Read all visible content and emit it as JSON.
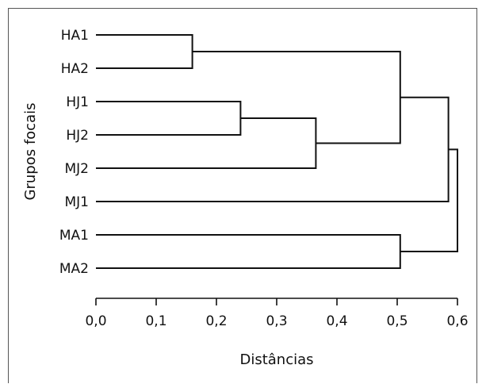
{
  "chart_data": {
    "type": "dendrogram",
    "xlabel": "Distâncias",
    "ylabel": "Grupos focais",
    "xlim": [
      0.0,
      0.6
    ],
    "xticks": [
      "0,0",
      "0,1",
      "0,2",
      "0,3",
      "0,4",
      "0,5",
      "0,6"
    ],
    "xtick_values": [
      0.0,
      0.1,
      0.2,
      0.3,
      0.4,
      0.5,
      0.6
    ],
    "leaves": [
      "HA1",
      "HA2",
      "HJ1",
      "HJ2",
      "MJ2",
      "MJ1",
      "MA1",
      "MA2"
    ],
    "merges": [
      {
        "id": "c1",
        "left": "HA1",
        "right": "HA2",
        "distance": 0.16
      },
      {
        "id": "c2",
        "left": "HJ1",
        "right": "HJ2",
        "distance": 0.24
      },
      {
        "id": "c3",
        "left": "c2",
        "right": "MJ2",
        "distance": 0.365
      },
      {
        "id": "c4",
        "left": "c1",
        "right": "c3",
        "distance": 0.505
      },
      {
        "id": "c5",
        "left": "MA1",
        "right": "MA2",
        "distance": 0.505
      },
      {
        "id": "c6",
        "left": "c4",
        "right": "MJ1",
        "distance": 0.585
      },
      {
        "id": "c7",
        "left": "c6",
        "right": "c5",
        "distance": 0.6
      }
    ]
  }
}
